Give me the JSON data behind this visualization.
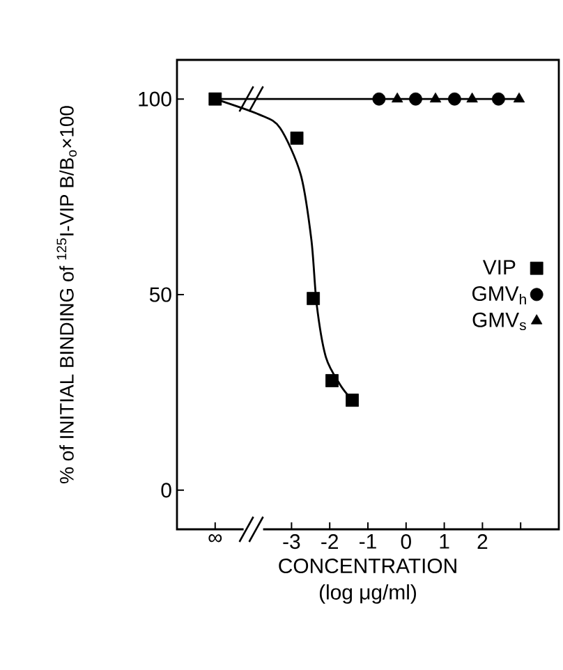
{
  "chart_data": {
    "type": "scatter",
    "xlabel": "CONCENTRATION",
    "ylabel": "% of INITIAL BINDING of $^{125}$I-VIP B/B$_{o}$×100",
    "annotations": [
      "(log μg/ml)"
    ],
    "xlim": [
      -6,
      4
    ],
    "ylim": [
      -10,
      110
    ],
    "xticks": [
      {
        "value": -5,
        "label": "∞"
      },
      -3,
      -2,
      -1,
      0,
      1,
      2,
      {
        "value": 3,
        "label": null
      }
    ],
    "yticks": [
      0,
      50,
      100
    ],
    "legend": "right",
    "grid": false,
    "series": [
      {
        "name": "VIP",
        "color": "#000000",
        "marker": "square",
        "x": [
          -5,
          -2.86,
          -2.43,
          -1.94,
          -1.41
        ],
        "values": [
          100,
          90,
          49,
          28,
          23
        ]
      },
      {
        "name": "GMV$_{h}$",
        "color": "#000000",
        "marker": "circle",
        "x": [
          -0.71,
          0.25,
          1.27,
          2.42
        ],
        "values": [
          100,
          100,
          100,
          100
        ]
      },
      {
        "name": "GMV$_{s}$",
        "color": "#000000",
        "marker": "triangle",
        "x": [
          -0.23,
          0.77,
          1.73,
          2.96
        ],
        "values": [
          100,
          100,
          100,
          100
        ]
      },
      {
        "type": "line",
        "color": "#000000",
        "x": [
          -5,
          -3.84,
          -3.3,
          -2.76,
          -2.48,
          -2.34,
          -2.1,
          -1.73,
          -1.41
        ],
        "values": [
          100,
          96,
          92.6,
          80.7,
          64,
          47.4,
          34,
          27,
          23
        ]
      },
      {
        "type": "line",
        "color": "#000000",
        "x": [
          -5,
          3
        ],
        "values": [
          100,
          100
        ]
      }
    ]
  }
}
